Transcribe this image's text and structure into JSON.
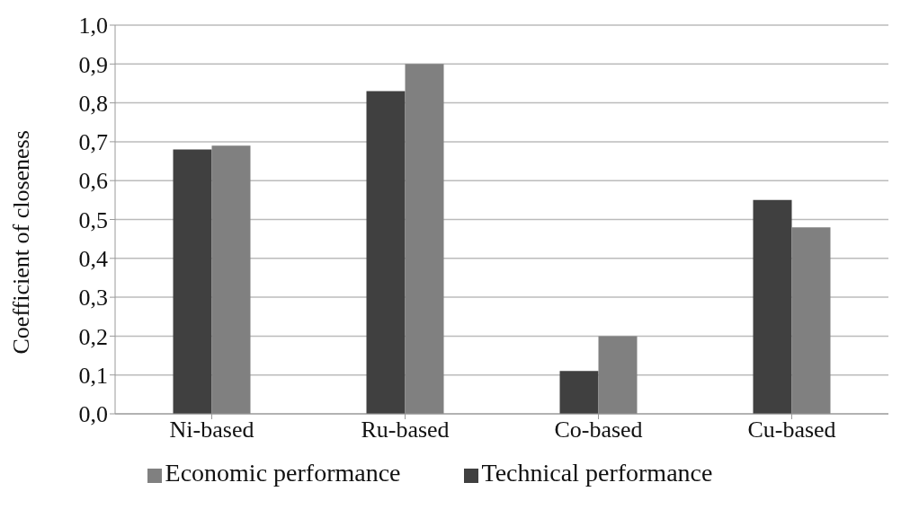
{
  "chart_data": {
    "type": "bar",
    "ylabel": "Coefficient of closeness",
    "categories": [
      "Ni-based",
      "Ru-based",
      "Co-based",
      "Cu-based"
    ],
    "series": [
      {
        "name": "Technical performance",
        "color": "#404040",
        "values": [
          0.68,
          0.83,
          0.11,
          0.55
        ]
      },
      {
        "name": "Economic performance",
        "color": "#808080",
        "values": [
          0.69,
          0.9,
          0.2,
          0.48
        ]
      }
    ],
    "ylim": [
      0,
      1
    ],
    "yticks": [
      {
        "value": 0,
        "label": "0,0"
      },
      {
        "value": 0.1,
        "label": "0,1"
      },
      {
        "value": 0.2,
        "label": "0,2"
      },
      {
        "value": 0.3,
        "label": "0,3"
      },
      {
        "value": 0.4,
        "label": "0,4"
      },
      {
        "value": 0.5,
        "label": "0,5"
      },
      {
        "value": 0.6,
        "label": "0,6"
      },
      {
        "value": 0.7,
        "label": "0,7"
      },
      {
        "value": 0.8,
        "label": "0,8"
      },
      {
        "value": 0.9,
        "label": "0,9"
      },
      {
        "value": 1,
        "label": "1,0"
      }
    ],
    "grid": "y",
    "legend": "bottom"
  }
}
